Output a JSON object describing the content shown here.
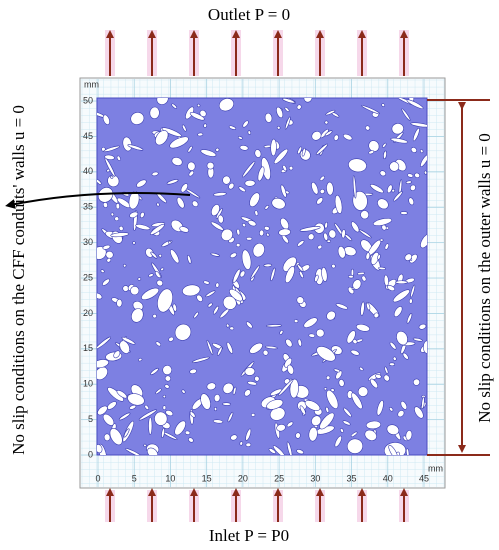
{
  "header": {
    "outlet": "Outlet P = 0",
    "inlet": "Inlet P = P0"
  },
  "annotations": {
    "conduit_walls": "No slip conditions on the CFF conduits' walls u = 0",
    "outer_walls": "No slip conditions on the outer walls u = 0"
  },
  "axes": {
    "unit": "mm",
    "xticks": [
      0,
      5,
      10,
      15,
      20,
      25,
      30,
      35,
      40,
      45
    ],
    "yticks": [
      0,
      5,
      10,
      15,
      20,
      25,
      30,
      35,
      40,
      45,
      50
    ]
  }
}
